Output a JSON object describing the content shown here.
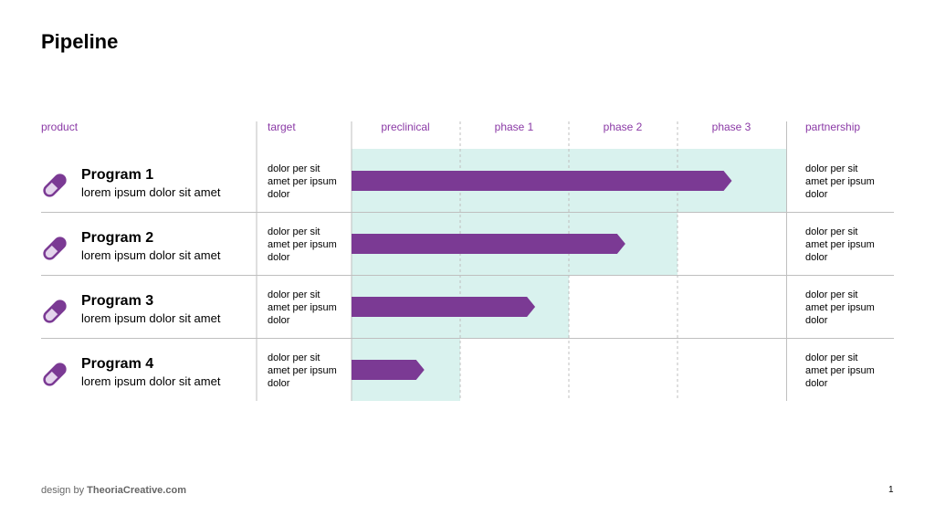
{
  "title": "Pipeline",
  "headers": {
    "product": "product",
    "target": "target",
    "phases": [
      "preclinical",
      "phase 1",
      "phase 2",
      "phase 3"
    ],
    "partnership": "partnership"
  },
  "colors": {
    "accent": "#7b3a94",
    "header_text": "#8b3aa6",
    "highlight": "#d9f2ee",
    "line": "#bfbfbf"
  },
  "icon": "pill-icon",
  "programs": [
    {
      "name": "Program 1",
      "description": "lorem ipsum dolor sit amet",
      "target": "dolor per sit amet per ipsum dolor",
      "partnership": "dolor per sit amet per ipsum dolor",
      "progress_phases": 3.5
    },
    {
      "name": "Program 2",
      "description": "lorem ipsum dolor sit amet",
      "target": "dolor per sit amet per ipsum dolor",
      "partnership": "dolor per sit amet per ipsum dolor",
      "progress_phases": 2.52
    },
    {
      "name": "Program 3",
      "description": "lorem ipsum dolor sit amet",
      "target": "dolor per sit amet per ipsum dolor",
      "partnership": "dolor per sit amet per ipsum dolor",
      "progress_phases": 1.69
    },
    {
      "name": "Program 4",
      "description": "lorem ipsum dolor sit amet",
      "target": "dolor per sit amet per ipsum dolor",
      "partnership": "dolor per sit amet per ipsum dolor",
      "progress_phases": 0.67
    }
  ],
  "footer": {
    "prefix": "design by",
    "brand": "TheoriaCreative.com"
  },
  "page_number": "1"
}
